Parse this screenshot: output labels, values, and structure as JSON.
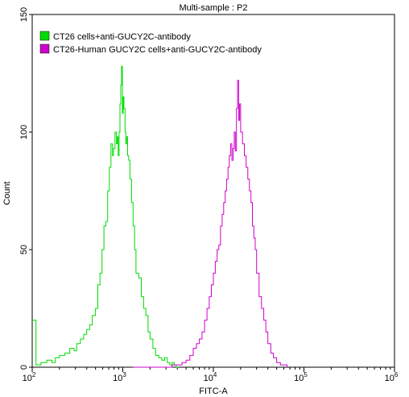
{
  "chart_data": {
    "type": "line",
    "title": "Multi-sample : P2",
    "xlabel": "FITC-A",
    "ylabel": "Count",
    "x_scale": "log",
    "xlim": [
      100,
      1000000
    ],
    "ylim": [
      0,
      150
    ],
    "x_ticks": [
      {
        "value": 100,
        "base": "10",
        "exp": "2"
      },
      {
        "value": 1000,
        "base": "10",
        "exp": "3"
      },
      {
        "value": 10000,
        "base": "10",
        "exp": "4"
      },
      {
        "value": 100000,
        "base": "10",
        "exp": "5"
      },
      {
        "value": 1000000,
        "base": "10",
        "exp": "6"
      }
    ],
    "y_ticks": [
      0,
      50,
      100,
      150
    ],
    "grid": false,
    "legend_position": "top-left",
    "series": [
      {
        "name": "CT26 cells+anti-GUCY2C-antibody",
        "color": "#00dd00",
        "x": [
          100,
          110,
          125,
          145,
          165,
          180,
          200,
          230,
          260,
          290,
          310,
          340,
          370,
          400,
          430,
          460,
          500,
          530,
          560,
          590,
          620,
          650,
          680,
          710,
          740,
          770,
          790,
          820,
          850,
          870,
          890,
          910,
          930,
          950,
          970,
          990,
          1010,
          1030,
          1060,
          1080,
          1100,
          1130,
          1160,
          1200,
          1250,
          1300,
          1350,
          1400,
          1500,
          1600,
          1700,
          1800,
          1900,
          2000,
          2150,
          2300,
          2500,
          2700,
          2900,
          3100,
          3300,
          3500,
          3700,
          3900,
          4100
        ],
        "y": [
          20,
          1,
          2,
          3,
          2,
          4,
          5,
          6,
          8,
          7,
          10,
          12,
          14,
          16,
          18,
          22,
          25,
          35,
          40,
          50,
          60,
          62,
          75,
          85,
          95,
          90,
          93,
          100,
          95,
          98,
          90,
          100,
          112,
          120,
          128,
          108,
          115,
          110,
          100,
          95,
          98,
          90,
          88,
          80,
          70,
          60,
          50,
          40,
          38,
          30,
          25,
          22,
          15,
          12,
          8,
          5,
          4,
          3,
          4,
          2,
          1,
          2,
          1,
          0,
          0
        ]
      },
      {
        "name": "CT26-Human GUCY2C cells+anti-GUCY2C-antibody",
        "color": "#cc00cc",
        "x": [
          1300,
          3500,
          4500,
          5000,
          5500,
          6000,
          6500,
          7000,
          7500,
          8000,
          8500,
          9000,
          9500,
          10000,
          10500,
          11000,
          11500,
          12000,
          12500,
          13000,
          13500,
          14000,
          14500,
          15000,
          15500,
          16000,
          16500,
          17000,
          17500,
          18000,
          18500,
          19000,
          19500,
          20000,
          21000,
          22000,
          23000,
          24000,
          25000,
          26000,
          27000,
          28000,
          29000,
          30000,
          32000,
          34000,
          36000,
          38000,
          40000,
          43000,
          46000,
          50000,
          55000,
          60000,
          65000
        ],
        "y": [
          0,
          1,
          2,
          3,
          5,
          8,
          10,
          12,
          15,
          20,
          25,
          30,
          35,
          40,
          45,
          50,
          52,
          60,
          65,
          70,
          75,
          80,
          85,
          90,
          95,
          88,
          93,
          100,
          92,
          110,
          122,
          105,
          112,
          100,
          95,
          90,
          85,
          80,
          75,
          70,
          60,
          55,
          50,
          40,
          30,
          25,
          20,
          15,
          10,
          6,
          4,
          2,
          1,
          1,
          0
        ]
      }
    ]
  }
}
